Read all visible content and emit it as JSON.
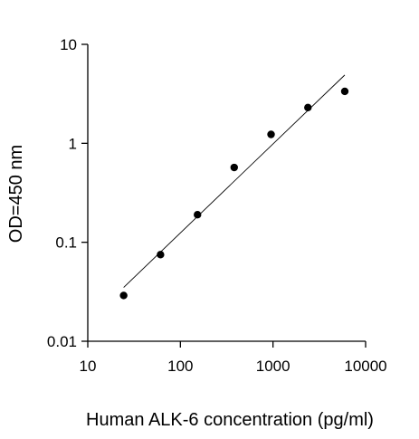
{
  "chart_data": {
    "type": "scatter",
    "title": "",
    "xlabel": "Human ALK-6 concentration (pg/ml)",
    "ylabel": "OD=450 nm",
    "xscale": "log",
    "yscale": "log",
    "xlim": [
      10,
      10000
    ],
    "ylim": [
      0.01,
      10
    ],
    "x_ticks": [
      10,
      100,
      1000,
      10000
    ],
    "x_tick_labels": [
      "10",
      "100",
      "1000",
      "10000"
    ],
    "y_ticks": [
      0.01,
      0.1,
      1,
      10
    ],
    "y_tick_labels": [
      "0.01",
      "0.1",
      "1",
      "10"
    ],
    "grid": false,
    "legend": "none",
    "points": [
      {
        "x": 24.4,
        "y": 0.029
      },
      {
        "x": 61,
        "y": 0.075
      },
      {
        "x": 153,
        "y": 0.19
      },
      {
        "x": 381,
        "y": 0.57
      },
      {
        "x": 953,
        "y": 1.23
      },
      {
        "x": 2383,
        "y": 2.3
      },
      {
        "x": 5957,
        "y": 3.35
      }
    ],
    "fit_line": {
      "x": [
        24.4,
        5957
      ],
      "y": [
        0.035,
        4.9
      ]
    },
    "colors": {
      "points": "#000000",
      "axes": "#000000",
      "fit_line": "#000000"
    }
  }
}
